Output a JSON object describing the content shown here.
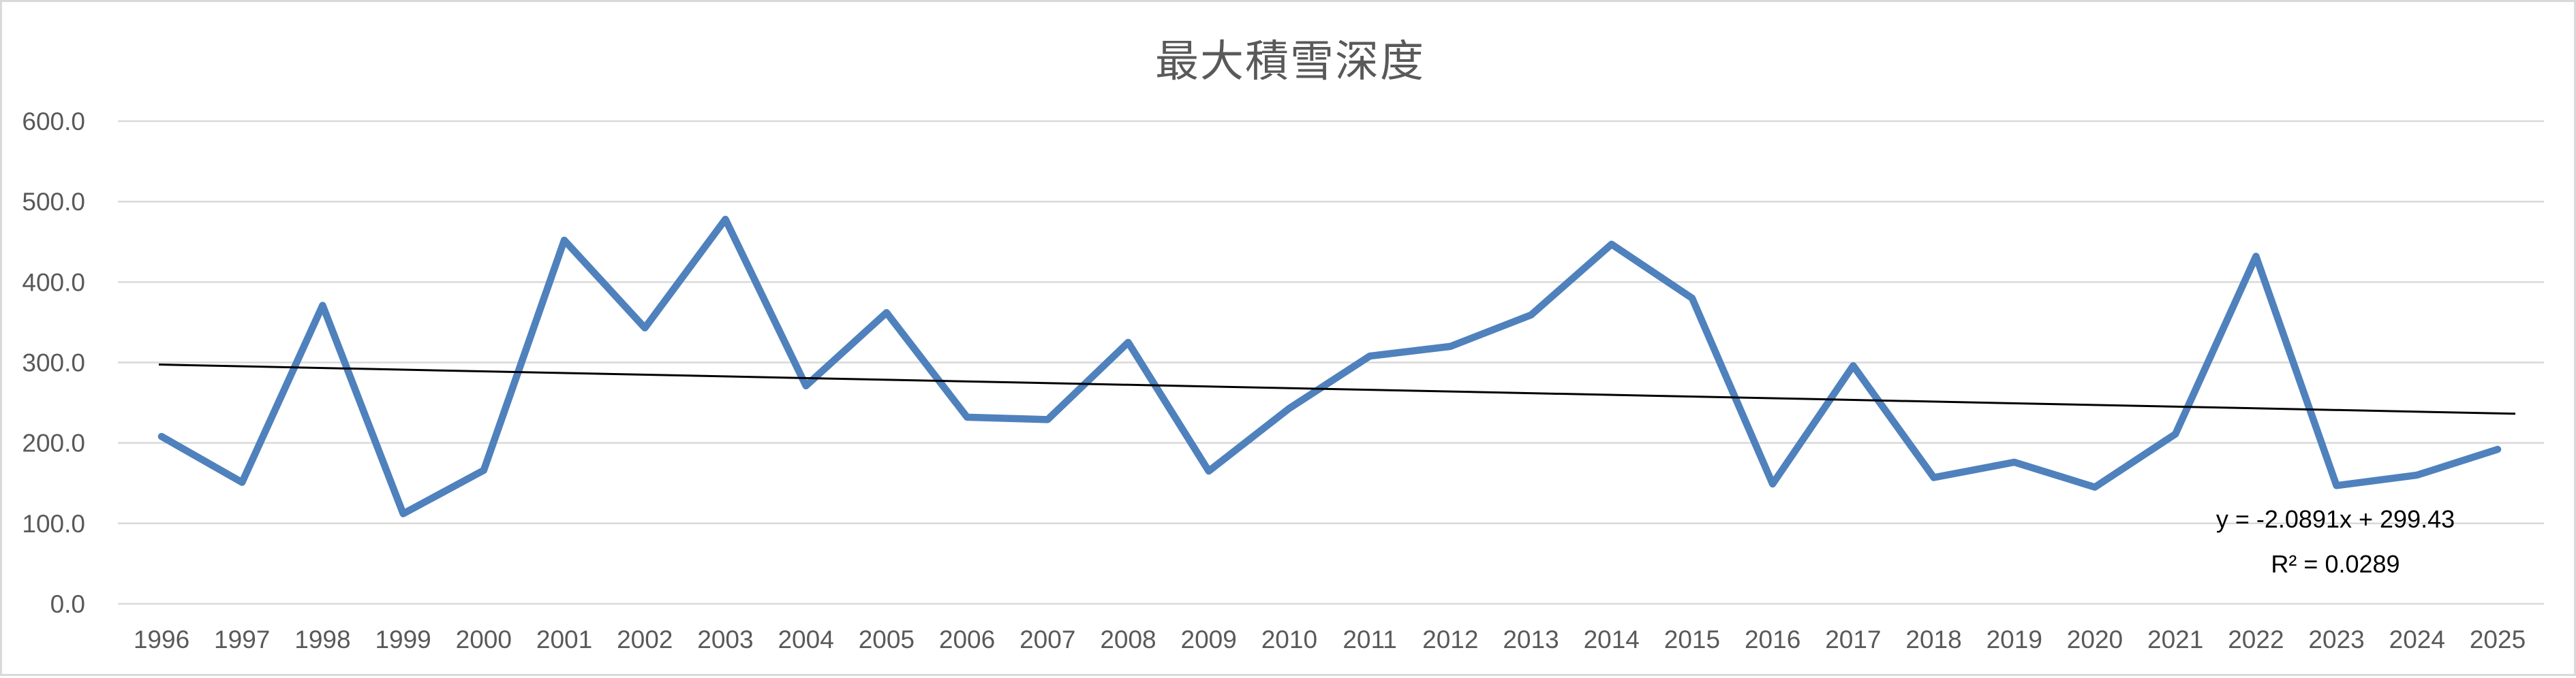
{
  "chart": {
    "title": "最大積雪深度",
    "annotation": {
      "equation": "y = -2.0891x + 299.43",
      "r_squared": "R² = 0.0289"
    },
    "colors": {
      "series": "#4F81BD",
      "trendline": "#000000",
      "gridline": "#D9D9D9",
      "axis_line": "#D9D9D9",
      "axis_text": "#595959",
      "title_text": "#595959",
      "border": "#D9D9D9",
      "background": "#FFFFFF"
    }
  },
  "chart_data": {
    "type": "line",
    "title": "最大積雪深度",
    "categories": [
      "1996",
      "1997",
      "1998",
      "1999",
      "2000",
      "2001",
      "2002",
      "2003",
      "2004",
      "2005",
      "2006",
      "2007",
      "2008",
      "2009",
      "2010",
      "2011",
      "2012",
      "2013",
      "2014",
      "2015",
      "2016",
      "2017",
      "2018",
      "2019",
      "2020",
      "2021",
      "2022",
      "2023",
      "2024",
      "2025"
    ],
    "series": [
      {
        "name": "最大積雪深度",
        "values": [
          208,
          151,
          371,
          112,
          166,
          452,
          343,
          478,
          271,
          362,
          232,
          229,
          325,
          165,
          243,
          308,
          320,
          359,
          447,
          380,
          149,
          296,
          157,
          176,
          145,
          211,
          432,
          147,
          160,
          192
        ]
      }
    ],
    "y_ticks": [
      "0.0",
      "100.0",
      "200.0",
      "300.0",
      "400.0",
      "500.0",
      "600.0"
    ],
    "ylim": [
      0,
      600
    ],
    "grid": true,
    "legend": "none",
    "trendline": {
      "type": "linear",
      "slope": -2.0891,
      "intercept": 299.43,
      "equation_label": "y = -2.0891x + 299.43",
      "r2_label": "R² = 0.0289"
    }
  }
}
